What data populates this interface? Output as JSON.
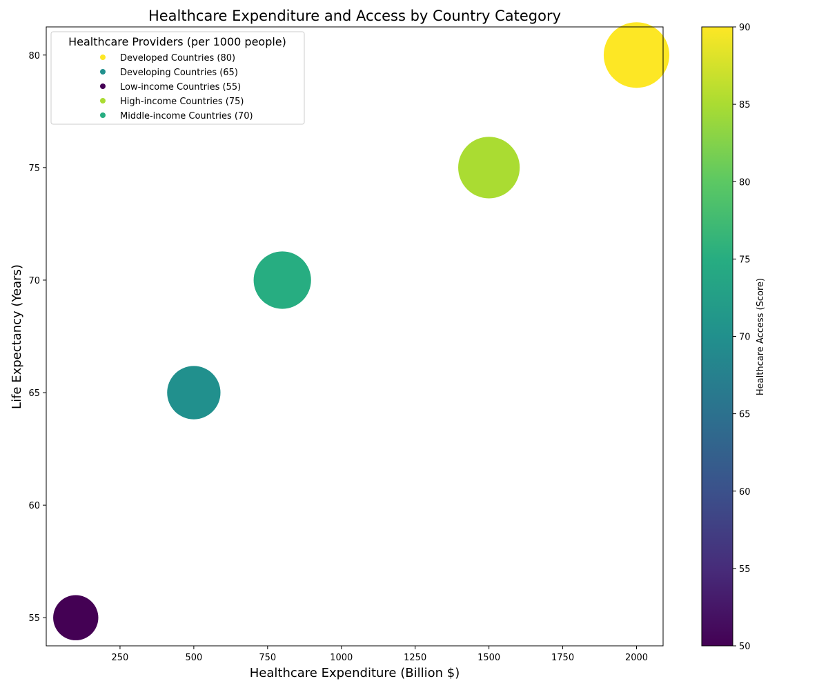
{
  "chart_data": {
    "type": "scatter",
    "title": "Healthcare Expenditure and Access by Country Category",
    "xlabel": "Healthcare Expenditure (Billion $)",
    "ylabel": "Life Expectancy (Years)",
    "xlim": [
      0,
      2090
    ],
    "ylim": [
      53.75,
      81.25
    ],
    "xticks": [
      250,
      500,
      750,
      1000,
      1250,
      1500,
      1750,
      2000
    ],
    "yticks": [
      55,
      60,
      65,
      70,
      75,
      80
    ],
    "grid": false,
    "legend": {
      "title": "Healthcare Providers (per 1000 people)",
      "placement": "top-left",
      "entries": [
        "Developed Countries (80)",
        "Developing Countries (65)",
        "Low-income Countries (55)",
        "High-income Countries (75)",
        "Middle-income Countries (70)"
      ]
    },
    "colorbar": {
      "label": "Healthcare Access (Score)",
      "colormap": "viridis",
      "range": [
        50,
        90
      ],
      "ticks": [
        50,
        55,
        60,
        65,
        70,
        75,
        80,
        85,
        90
      ]
    },
    "points": [
      {
        "category": "Developed Countries",
        "x": 2000,
        "y": 80,
        "access": 90,
        "providers": 80
      },
      {
        "category": "Developing Countries",
        "x": 500,
        "y": 65,
        "access": 70,
        "providers": 65
      },
      {
        "category": "Low-income Countries",
        "x": 100,
        "y": 55,
        "access": 50,
        "providers": 55
      },
      {
        "category": "High-income Countries",
        "x": 1500,
        "y": 75,
        "access": 85,
        "providers": 75
      },
      {
        "category": "Middle-income Countries",
        "x": 800,
        "y": 70,
        "access": 75,
        "providers": 70
      }
    ]
  }
}
